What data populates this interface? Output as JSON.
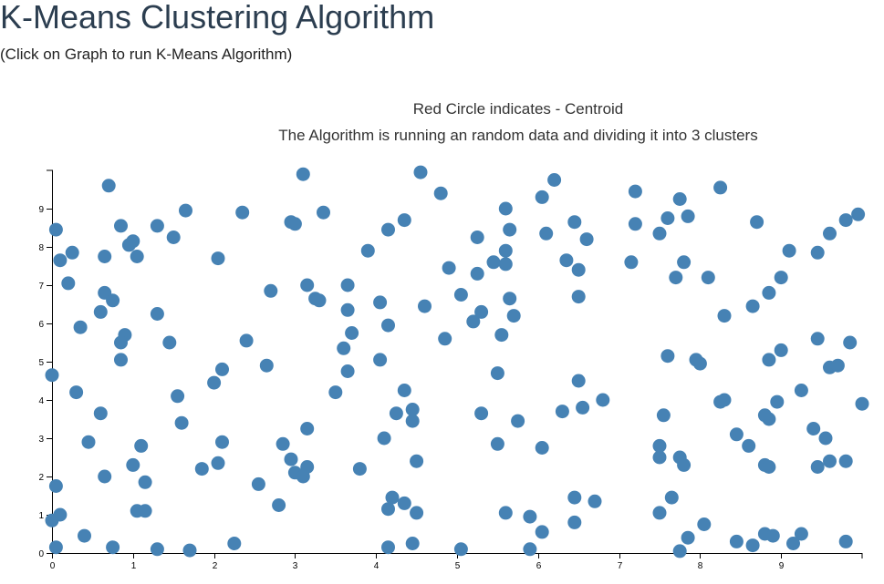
{
  "header": {
    "title": "K-Means Clustering Algorithm",
    "subtitle": "(Click on Graph to run K-Means Algorithm)"
  },
  "chart_info": {
    "caption1": "Red Circle indicates - Centroid",
    "caption2": "The Algorithm is running an random data and dividing it into 3 clusters"
  },
  "colors": {
    "point": "#4682b4",
    "axis": "#000000",
    "centroid": "#ff0000"
  },
  "chart_data": {
    "type": "scatter",
    "xlim": [
      0,
      10
    ],
    "ylim": [
      0,
      10
    ],
    "xticks": [
      "0",
      "1",
      "2",
      "3",
      "4",
      "5",
      "6",
      "7",
      "8",
      "9"
    ],
    "yticks": [
      "0",
      "1",
      "2",
      "3",
      "4",
      "5",
      "6",
      "7",
      "8",
      "9"
    ],
    "grid": false,
    "points": [
      [
        0.05,
        8.45
      ],
      [
        0.1,
        7.65
      ],
      [
        0.25,
        7.85
      ],
      [
        0.2,
        7.05
      ],
      [
        0.35,
        5.9
      ],
      [
        0.0,
        4.65
      ],
      [
        0.3,
        4.2
      ],
      [
        0.45,
        2.9
      ],
      [
        0.05,
        1.75
      ],
      [
        0.1,
        1.0
      ],
      [
        0.0,
        0.85
      ],
      [
        0.4,
        0.45
      ],
      [
        0.05,
        0.15
      ],
      [
        0.7,
        9.6
      ],
      [
        0.85,
        8.55
      ],
      [
        0.65,
        7.75
      ],
      [
        1.0,
        8.15
      ],
      [
        0.95,
        8.05
      ],
      [
        1.05,
        7.75
      ],
      [
        0.65,
        6.8
      ],
      [
        0.75,
        6.6
      ],
      [
        0.6,
        6.3
      ],
      [
        0.9,
        5.7
      ],
      [
        0.85,
        5.5
      ],
      [
        0.85,
        5.05
      ],
      [
        0.6,
        3.65
      ],
      [
        0.65,
        2.0
      ],
      [
        1.0,
        2.3
      ],
      [
        1.1,
        2.8
      ],
      [
        1.15,
        1.85
      ],
      [
        1.05,
        1.1
      ],
      [
        1.15,
        1.1
      ],
      [
        0.75,
        0.15
      ],
      [
        1.3,
        8.55
      ],
      [
        1.65,
        8.95
      ],
      [
        1.5,
        8.25
      ],
      [
        1.3,
        6.25
      ],
      [
        1.45,
        5.5
      ],
      [
        1.55,
        4.1
      ],
      [
        1.6,
        3.4
      ],
      [
        1.85,
        2.2
      ],
      [
        1.3,
        0.1
      ],
      [
        1.7,
        0.07
      ],
      [
        2.05,
        7.7
      ],
      [
        2.0,
        4.45
      ],
      [
        2.1,
        4.8
      ],
      [
        2.1,
        2.9
      ],
      [
        2.05,
        2.35
      ],
      [
        2.25,
        0.25
      ],
      [
        2.35,
        8.9
      ],
      [
        2.4,
        5.55
      ],
      [
        2.65,
        4.9
      ],
      [
        2.7,
        6.85
      ],
      [
        2.55,
        1.8
      ],
      [
        2.8,
        1.25
      ],
      [
        3.1,
        9.9
      ],
      [
        2.95,
        8.65
      ],
      [
        3.0,
        8.6
      ],
      [
        3.35,
        8.9
      ],
      [
        3.15,
        7.0
      ],
      [
        3.25,
        6.65
      ],
      [
        3.3,
        6.6
      ],
      [
        3.15,
        3.25
      ],
      [
        2.85,
        2.85
      ],
      [
        2.95,
        2.45
      ],
      [
        3.0,
        2.1
      ],
      [
        3.15,
        2.25
      ],
      [
        3.1,
        2.0
      ],
      [
        3.65,
        7.0
      ],
      [
        3.65,
        6.35
      ],
      [
        3.7,
        5.75
      ],
      [
        3.6,
        5.35
      ],
      [
        3.65,
        4.75
      ],
      [
        3.5,
        4.2
      ],
      [
        3.8,
        2.2
      ],
      [
        3.9,
        7.9
      ],
      [
        4.05,
        6.55
      ],
      [
        4.15,
        5.95
      ],
      [
        4.05,
        5.05
      ],
      [
        4.15,
        8.45
      ],
      [
        4.35,
        8.7
      ],
      [
        4.1,
        3.0
      ],
      [
        4.25,
        3.65
      ],
      [
        4.35,
        4.25
      ],
      [
        4.45,
        3.75
      ],
      [
        4.45,
        3.45
      ],
      [
        4.5,
        2.4
      ],
      [
        4.2,
        1.45
      ],
      [
        4.15,
        1.15
      ],
      [
        4.35,
        1.3
      ],
      [
        4.5,
        1.05
      ],
      [
        4.15,
        0.15
      ],
      [
        4.45,
        0.25
      ],
      [
        4.55,
        9.95
      ],
      [
        4.8,
        9.4
      ],
      [
        4.6,
        6.45
      ],
      [
        4.9,
        7.45
      ],
      [
        4.85,
        5.6
      ],
      [
        5.05,
        6.75
      ],
      [
        5.2,
        6.05
      ],
      [
        5.25,
        7.3
      ],
      [
        5.25,
        8.25
      ],
      [
        5.3,
        6.3
      ],
      [
        5.3,
        3.65
      ],
      [
        5.45,
        7.6
      ],
      [
        5.6,
        7.55
      ],
      [
        5.5,
        4.7
      ],
      [
        5.5,
        2.85
      ],
      [
        5.6,
        1.05
      ],
      [
        5.05,
        0.1
      ],
      [
        5.6,
        9.0
      ],
      [
        5.65,
        8.45
      ],
      [
        5.6,
        7.9
      ],
      [
        5.65,
        6.65
      ],
      [
        5.7,
        6.2
      ],
      [
        5.55,
        5.7
      ],
      [
        5.75,
        3.45
      ],
      [
        5.9,
        0.95
      ],
      [
        6.05,
        0.55
      ],
      [
        5.9,
        0.1
      ],
      [
        6.05,
        9.3
      ],
      [
        6.2,
        9.75
      ],
      [
        6.1,
        8.35
      ],
      [
        6.05,
        2.75
      ],
      [
        6.35,
        7.65
      ],
      [
        6.5,
        7.4
      ],
      [
        6.45,
        8.65
      ],
      [
        6.6,
        8.2
      ],
      [
        6.5,
        6.7
      ],
      [
        6.3,
        3.7
      ],
      [
        6.5,
        4.5
      ],
      [
        6.55,
        3.8
      ],
      [
        6.8,
        4.0
      ],
      [
        6.45,
        1.45
      ],
      [
        6.7,
        1.35
      ],
      [
        6.45,
        0.8
      ],
      [
        7.2,
        9.45
      ],
      [
        7.2,
        8.6
      ],
      [
        7.15,
        7.6
      ],
      [
        7.5,
        8.35
      ],
      [
        7.6,
        8.75
      ],
      [
        7.75,
        9.25
      ],
      [
        7.85,
        8.8
      ],
      [
        7.8,
        7.6
      ],
      [
        7.7,
        7.2
      ],
      [
        8.1,
        7.2
      ],
      [
        7.6,
        5.15
      ],
      [
        7.55,
        3.6
      ],
      [
        7.5,
        2.8
      ],
      [
        7.5,
        2.5
      ],
      [
        7.75,
        2.5
      ],
      [
        7.8,
        2.3
      ],
      [
        7.65,
        1.45
      ],
      [
        7.5,
        1.05
      ],
      [
        7.85,
        0.4
      ],
      [
        7.75,
        0.05
      ],
      [
        8.25,
        9.55
      ],
      [
        8.3,
        6.2
      ],
      [
        7.95,
        5.05
      ],
      [
        8.0,
        4.95
      ],
      [
        8.25,
        3.95
      ],
      [
        8.3,
        4.0
      ],
      [
        8.45,
        3.1
      ],
      [
        8.6,
        2.8
      ],
      [
        8.05,
        0.75
      ],
      [
        8.45,
        0.3
      ],
      [
        8.65,
        0.2
      ],
      [
        8.7,
        8.65
      ],
      [
        8.65,
        6.45
      ],
      [
        8.85,
        6.8
      ],
      [
        9.0,
        7.2
      ],
      [
        9.1,
        7.9
      ],
      [
        8.85,
        5.05
      ],
      [
        9.0,
        5.3
      ],
      [
        8.8,
        3.6
      ],
      [
        8.85,
        3.5
      ],
      [
        8.95,
        3.95
      ],
      [
        8.8,
        2.3
      ],
      [
        8.85,
        2.25
      ],
      [
        8.8,
        0.5
      ],
      [
        8.9,
        0.45
      ],
      [
        9.15,
        0.25
      ],
      [
        9.25,
        0.5
      ],
      [
        9.25,
        4.25
      ],
      [
        9.45,
        7.85
      ],
      [
        9.6,
        8.35
      ],
      [
        9.8,
        8.7
      ],
      [
        9.95,
        8.85
      ],
      [
        9.45,
        5.6
      ],
      [
        9.85,
        5.5
      ],
      [
        9.6,
        4.85
      ],
      [
        9.7,
        4.9
      ],
      [
        9.4,
        3.25
      ],
      [
        9.55,
        3.0
      ],
      [
        9.45,
        2.25
      ],
      [
        9.6,
        2.4
      ],
      [
        9.8,
        2.4
      ],
      [
        10.0,
        3.9
      ],
      [
        9.8,
        0.3
      ]
    ]
  }
}
